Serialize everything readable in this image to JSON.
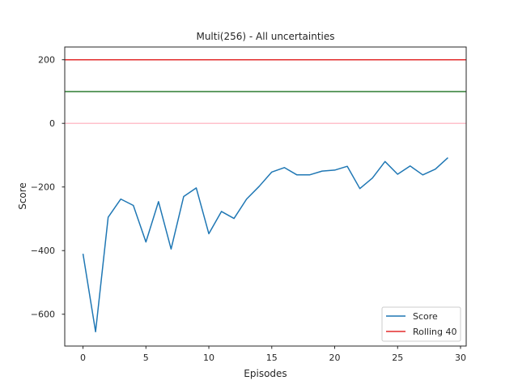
{
  "chart_data": {
    "type": "line",
    "title": "Multi(256) - All uncertainties",
    "xlabel": "Episodes",
    "ylabel": "Score",
    "xlim": [
      -1.45,
      30.45
    ],
    "ylim": [
      -700,
      240
    ],
    "xticks": [
      0,
      5,
      10,
      15,
      20,
      25,
      30
    ],
    "yticks": [
      -600,
      -400,
      -200,
      0,
      200
    ],
    "xtick_labels": [
      "0",
      "5",
      "10",
      "15",
      "20",
      "25",
      "30"
    ],
    "ytick_labels": [
      "−600",
      "−400",
      "−200",
      "0",
      "200"
    ],
    "grid": false,
    "legend_position": "lower-right",
    "series": [
      {
        "name": "Score",
        "color": "#1f77b4",
        "x": [
          0,
          1,
          2,
          3,
          4,
          5,
          6,
          7,
          8,
          9,
          10,
          11,
          12,
          13,
          14,
          15,
          16,
          17,
          18,
          19,
          20,
          21,
          22,
          23,
          24,
          25,
          26,
          27,
          28,
          29
        ],
        "values": [
          -410,
          -655,
          -295,
          -238,
          -258,
          -373,
          -246,
          -395,
          -230,
          -203,
          -347,
          -277,
          -299,
          -238,
          -198,
          -153,
          -139,
          -162,
          -162,
          -150,
          -147,
          -135,
          -205,
          -172,
          -120,
          -160,
          -134,
          -162,
          -144,
          -108
        ]
      },
      {
        "name": "Rolling 40",
        "color": "#e32d2d",
        "x": [],
        "values": []
      }
    ],
    "reference_lines": [
      {
        "y": 200,
        "color": "#e32d2d"
      },
      {
        "y": 100,
        "color": "#2e7d32"
      },
      {
        "y": 0,
        "color": "#ffc0cb"
      }
    ]
  }
}
